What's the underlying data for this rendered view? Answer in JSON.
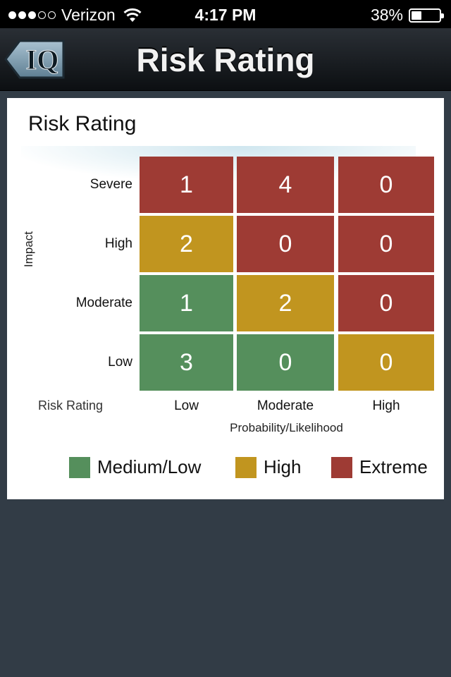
{
  "status_bar": {
    "carrier": "Verizon",
    "time": "4:17 PM",
    "battery_percent": "38%",
    "battery_level": 0.38,
    "signal_bars_filled": 3,
    "signal_bars_total": 5
  },
  "nav": {
    "back_logo": "IQ",
    "title": "Risk Rating"
  },
  "card": {
    "title": "Risk Rating",
    "y_axis_label": "Impact",
    "x_axis_label": "Probability/Likelihood",
    "corner_label": "Risk Rating",
    "rows": [
      "Severe",
      "High",
      "Moderate",
      "Low"
    ],
    "columns": [
      "Low",
      "Moderate",
      "High"
    ],
    "matrix": [
      [
        {
          "value": "1",
          "level": "extreme"
        },
        {
          "value": "4",
          "level": "extreme"
        },
        {
          "value": "0",
          "level": "extreme"
        }
      ],
      [
        {
          "value": "2",
          "level": "high"
        },
        {
          "value": "0",
          "level": "extreme"
        },
        {
          "value": "0",
          "level": "extreme"
        }
      ],
      [
        {
          "value": "1",
          "level": "medium"
        },
        {
          "value": "2",
          "level": "high"
        },
        {
          "value": "0",
          "level": "extreme"
        }
      ],
      [
        {
          "value": "3",
          "level": "medium"
        },
        {
          "value": "0",
          "level": "medium"
        },
        {
          "value": "0",
          "level": "high"
        }
      ]
    ],
    "legend": [
      {
        "key": "medium",
        "label": "Medium/Low",
        "color": "#558f5c"
      },
      {
        "key": "high",
        "label": "High",
        "color": "#c1951f"
      },
      {
        "key": "extreme",
        "label": "Extreme",
        "color": "#9e3b34"
      }
    ]
  },
  "icons": {
    "wifi": "wifi-icon",
    "battery": "battery-icon",
    "back": "iq-back-icon"
  }
}
